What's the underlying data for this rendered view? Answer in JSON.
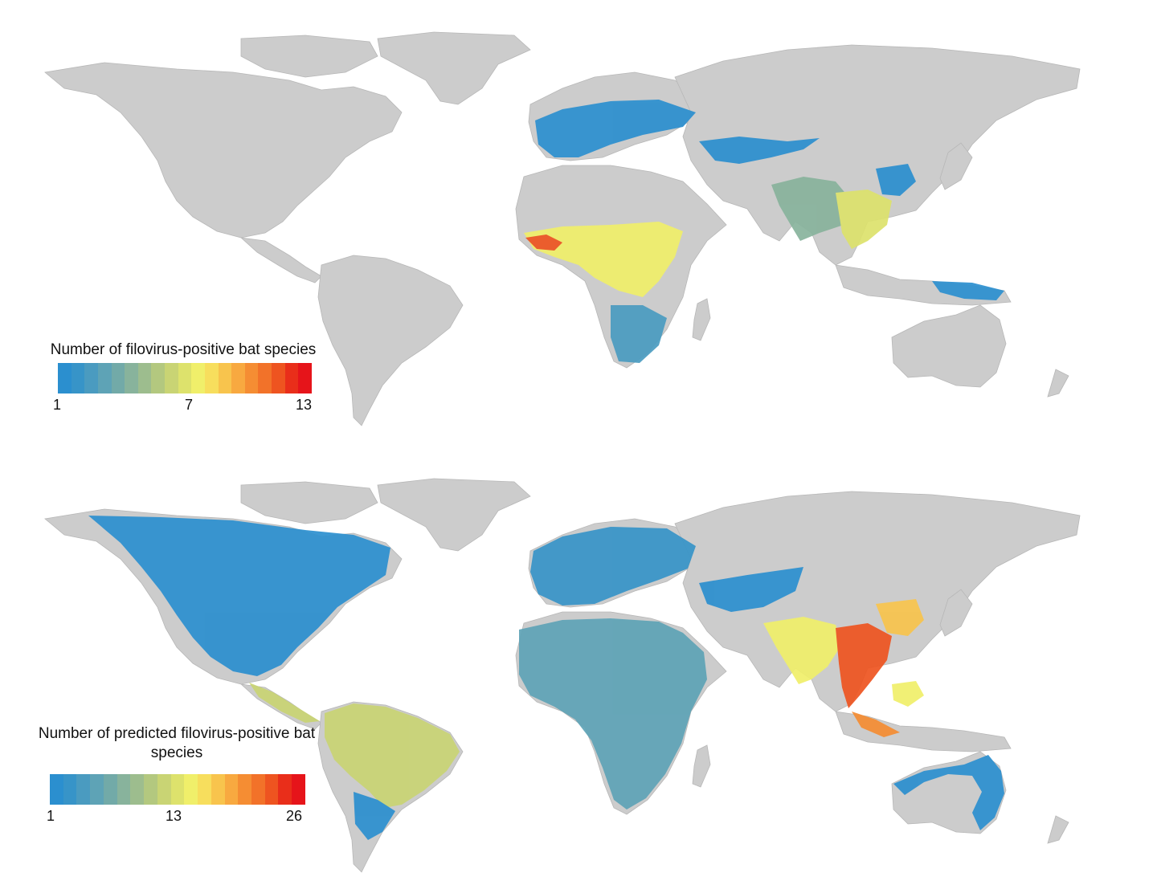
{
  "panels": {
    "observed": {
      "legend_title": "Number of filovirus-positive bat species",
      "scale_min": "1",
      "scale_mid": "7",
      "scale_max": "13"
    },
    "predicted": {
      "legend_title": "Number of predicted filovirus-positive bat species",
      "scale_min": "1",
      "scale_mid": "13",
      "scale_max": "26"
    }
  },
  "colors": {
    "land": "#cccccc",
    "ramp": [
      "#2b8fcf",
      "#3794c8",
      "#4a9bc0",
      "#5ea3b6",
      "#72aaa8",
      "#88b39c",
      "#9dbd8e",
      "#b3c87f",
      "#c9d474",
      "#dde26c",
      "#f0ef6a",
      "#f7de5d",
      "#f8c44d",
      "#f8a940",
      "#f58d33",
      "#f27229",
      "#ee5420",
      "#e92e1a",
      "#e6141a"
    ]
  }
}
